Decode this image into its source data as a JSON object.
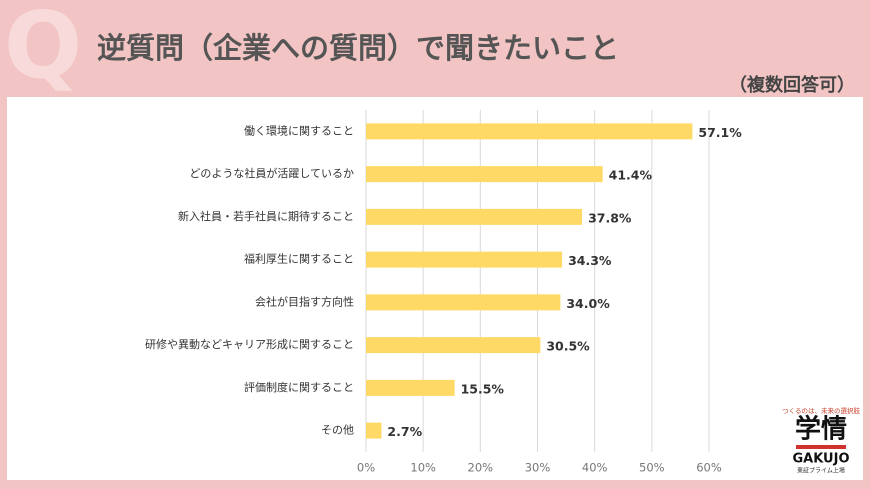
{
  "watermark": "Q",
  "chart_data": {
    "type": "bar",
    "orientation": "horizontal",
    "title": "逆質問（企業への質問）で聞きたいこと",
    "subtitle": "（複数回答可）",
    "categories": [
      "働く環境に関すること",
      "どのような社員が活躍しているか",
      "新入社員・若手社員に期待すること",
      "福利厚生に関すること",
      "会社が目指す方向性",
      "研修や異動などキャリア形成に関すること",
      "評価制度に関すること",
      "その他"
    ],
    "values": [
      57.1,
      41.4,
      37.8,
      34.3,
      34.0,
      30.5,
      15.5,
      2.7
    ],
    "value_labels": [
      "57.1%",
      "41.4%",
      "37.8%",
      "34.3%",
      "34.0%",
      "30.5%",
      "15.5%",
      "2.7%"
    ],
    "color": "#ffd966",
    "xlim": [
      0,
      60
    ],
    "xticks": [
      {
        "value": 0,
        "label": "0%"
      },
      {
        "value": 10,
        "label": "10%"
      },
      {
        "value": 20,
        "label": "20%"
      },
      {
        "value": 30,
        "label": "30%"
      },
      {
        "value": 40,
        "label": "40%"
      },
      {
        "value": 50,
        "label": "50%"
      },
      {
        "value": 60,
        "label": "60%"
      }
    ],
    "grid": true
  },
  "logo": {
    "tagline": "つくるのは、未来の選択肢",
    "name": "学情",
    "name_en": "GAKUJO",
    "note": "東証プライム上場"
  }
}
